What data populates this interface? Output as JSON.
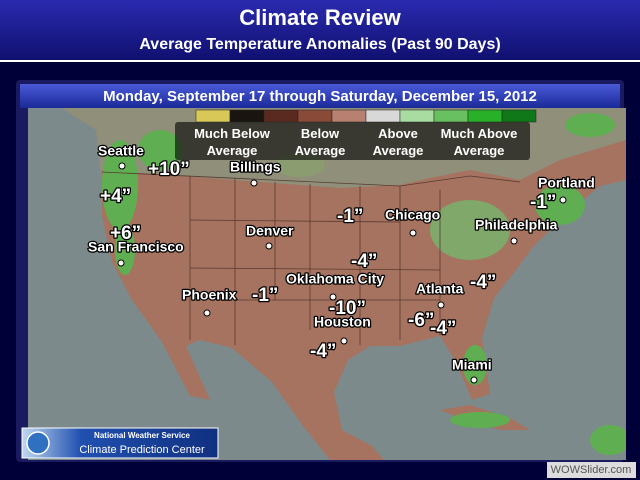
{
  "header": {
    "title": "Climate Review",
    "subtitle": "Average Temperature Anomalies (Past 90 Days)"
  },
  "date_range": "Monday, September 17 through Saturday, December 15, 2012",
  "legend": [
    "Much Below Average",
    "Below Average",
    "Above Average",
    "Much Above Average"
  ],
  "cities": [
    "Seattle",
    "Billings",
    "San Francisco",
    "Denver",
    "Phoenix",
    "Oklahoma City",
    "Houston",
    "Chicago",
    "Atlanta",
    "Miami",
    "Philadelphia",
    "Portland"
  ],
  "anomalies": [
    "+10”",
    "+4”",
    "+6”",
    "-1”",
    "-1”",
    "-4”",
    "-10”",
    "-4”",
    "-6”",
    "-4”",
    "-4”",
    "-1”"
  ],
  "logo": {
    "line1": "National Weather Service",
    "line2": "Climate Prediction Center"
  },
  "watermark": "WOWSlider.com"
}
